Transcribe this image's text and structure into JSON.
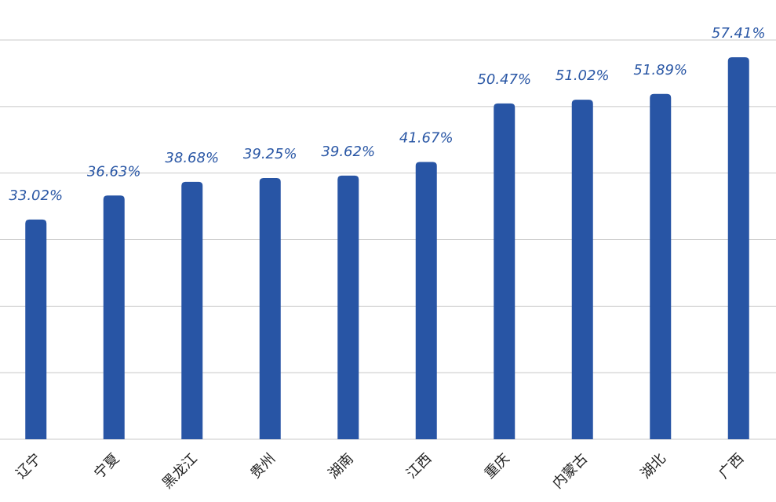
{
  "chart_data": {
    "type": "bar",
    "categories": [
      "辽宁",
      "宁夏",
      "黑龙江",
      "贵州",
      "湖南",
      "江西",
      "重庆",
      "内蒙古",
      "湖北",
      "广西"
    ],
    "values": [
      33.02,
      36.63,
      38.68,
      39.25,
      39.62,
      41.67,
      50.47,
      51.02,
      51.89,
      57.41
    ],
    "value_labels": [
      "33.02%",
      "36.63%",
      "38.68%",
      "39.25%",
      "39.62%",
      "41.67%",
      "50.47%",
      "51.02%",
      "51.89%",
      "57.41%"
    ],
    "color": "#2855a5",
    "ylim": [
      0,
      60
    ],
    "yticks": [
      0,
      10,
      20,
      30,
      40,
      50,
      60
    ],
    "grid": true
  }
}
